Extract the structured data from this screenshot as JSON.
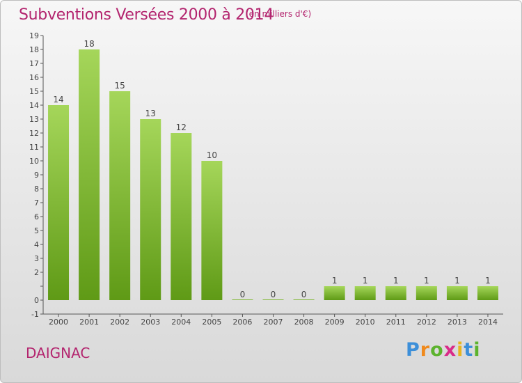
{
  "header": {
    "title": "Subventions Versées 2000 à 2014",
    "unit": "(en milliers d'€)"
  },
  "footer": {
    "commune": "DAIGNAC",
    "logo": [
      "P",
      "r",
      "o",
      "x",
      "i",
      "t",
      "i"
    ]
  },
  "colors": {
    "title": "#b3246e",
    "bar_light": "#a5d65a",
    "bar_dark": "#5f9a16"
  },
  "chart_data": {
    "type": "bar",
    "title": "Subventions Versées 2000 à 2014",
    "xlabel": "",
    "ylabel": "",
    "categories": [
      "2000",
      "2001",
      "2002",
      "2003",
      "2004",
      "2005",
      "2006",
      "2007",
      "2008",
      "2009",
      "2010",
      "2011",
      "2012",
      "2013",
      "2014"
    ],
    "values": [
      14,
      18,
      15,
      13,
      12,
      10,
      0,
      0,
      0,
      1,
      1,
      1,
      1,
      1,
      1
    ],
    "ylim": [
      -1,
      19
    ],
    "yticks": [
      -1,
      0,
      1,
      2,
      3,
      4,
      5,
      6,
      7,
      8,
      9,
      10,
      11,
      12,
      13,
      14,
      15,
      16,
      17,
      18,
      19
    ],
    "ytick_labels": [
      "-1",
      "0",
      "",
      "2",
      "3",
      "4",
      "5",
      "6",
      "7",
      "8",
      "9",
      "10",
      "11",
      "12",
      "13",
      "14",
      "15",
      "16",
      "17",
      "18",
      "19"
    ],
    "grid": false,
    "legend": "none"
  }
}
